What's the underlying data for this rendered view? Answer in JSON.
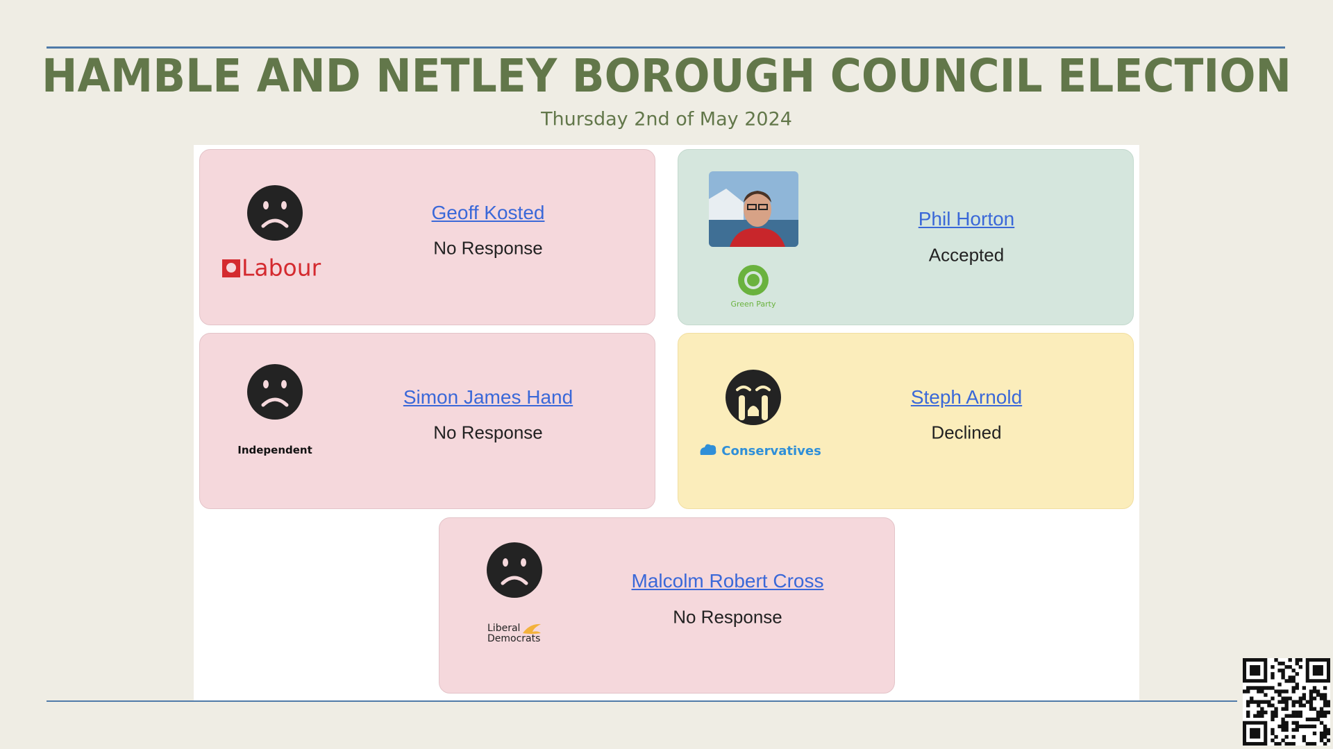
{
  "header": {
    "title": "HAMBLE AND NETLEY BOROUGH COUNCIL ELECTION",
    "subtitle": "Thursday 2nd of May 2024"
  },
  "candidates": [
    {
      "name": "Geoff Kosted",
      "status": "No Response",
      "party": "Labour"
    },
    {
      "name": "Phil Horton",
      "status": "Accepted",
      "party": "Green Party"
    },
    {
      "name": "Simon James Hand",
      "status": "No Response",
      "party": "Independent"
    },
    {
      "name": "Steph Arnold",
      "status": "Declined",
      "party": "Conservatives"
    },
    {
      "name": "Malcolm Robert Cross",
      "status": "No Response",
      "party": "Liberal Democrats"
    }
  ]
}
